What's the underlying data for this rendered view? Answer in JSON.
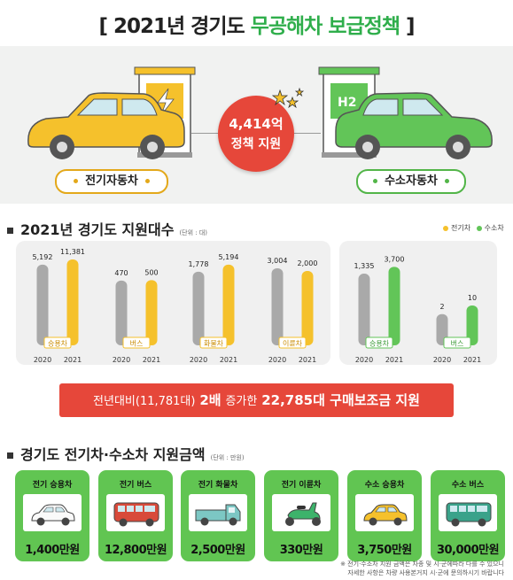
{
  "title": {
    "open": "[",
    "prefix": "2021년 경기도",
    "highlight": "무공해차 보급정책",
    "close": "]"
  },
  "hero": {
    "amount": "4,414억",
    "amount_label": "정책 지원",
    "ev_label": "전기자동차",
    "h2_label": "수소자동차",
    "h2_sign": "H2"
  },
  "colors": {
    "ev": "#f5c12c",
    "h2": "#62c558",
    "prior": "#a9a9a9",
    "accent_red": "#e6473a",
    "title_green": "#2fae4b"
  },
  "section1": {
    "title": "2021년 경기도 지원대수",
    "unit": "(단위 : 대)",
    "legend_ev": "전기차",
    "legend_h2": "수소차"
  },
  "chart_data": [
    {
      "type": "bar",
      "panel": "전기차",
      "x": [
        "2020",
        "2021"
      ],
      "groups": [
        {
          "category": "승용차",
          "values": [
            5192,
            11381
          ],
          "labels": [
            "5,192",
            "11,381"
          ]
        },
        {
          "category": "버스",
          "values": [
            470,
            500
          ],
          "labels": [
            "470",
            "500"
          ]
        },
        {
          "category": "화물차",
          "values": [
            1778,
            5194
          ],
          "labels": [
            "1,778",
            "5,194"
          ]
        },
        {
          "category": "이륜차",
          "values": [
            3004,
            2000
          ],
          "labels": [
            "3,004",
            "2,000"
          ]
        }
      ]
    },
    {
      "type": "bar",
      "panel": "수소차",
      "x": [
        "2020",
        "2021"
      ],
      "groups": [
        {
          "category": "승용차",
          "values": [
            1335,
            3700
          ],
          "labels": [
            "1,335",
            "3,700"
          ]
        },
        {
          "category": "버스",
          "values": [
            2,
            10
          ],
          "labels": [
            "2",
            "10"
          ]
        }
      ]
    }
  ],
  "banner": {
    "p1": "전년대비(11,781대)",
    "p2": "2배",
    "p3": "증가한",
    "p4": "22,785대 구매보조금 지원"
  },
  "section2": {
    "title": "경기도 전기차·수소차 지원금액",
    "unit": "(단위 : 만원)"
  },
  "cards": [
    {
      "title": "전기 승용차",
      "value": "1,400만원",
      "icon": "white-car-icon"
    },
    {
      "title": "전기 버스",
      "value": "12,800만원",
      "icon": "red-bus-icon"
    },
    {
      "title": "전기 화물차",
      "value": "2,500만원",
      "icon": "truck-icon"
    },
    {
      "title": "전기 이륜차",
      "value": "330만원",
      "icon": "scooter-icon"
    },
    {
      "title": "수소 승용차",
      "value": "3,750만원",
      "icon": "yellow-car-icon"
    },
    {
      "title": "수소 버스",
      "value": "30,000만원",
      "icon": "green-bus-icon"
    }
  ],
  "footnote": {
    "line1": "※ 전기·수소차 지원 금액은 차종 및 시·군에따라 다를 수 있으니",
    "line2": "자세한 사항은 차량 사용본거지 시·군에 문의하시기 바랍니다"
  }
}
